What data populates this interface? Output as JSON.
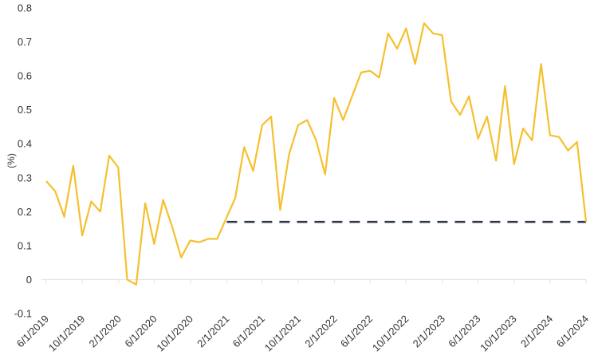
{
  "chart_data": {
    "type": "line",
    "ylabel": "(%)",
    "ylim": [
      -0.1,
      0.8
    ],
    "yticks": [
      "-0.1",
      "0",
      "0.1",
      "0.2",
      "0.3",
      "0.4",
      "0.5",
      "0.6",
      "0.7",
      "0.8"
    ],
    "xtick_labels": [
      "6/1/2019",
      "10/1/2019",
      "2/1/2020",
      "6/1/2020",
      "10/1/2020",
      "2/1/2021",
      "6/1/2021",
      "10/1/2021",
      "2/1/2022",
      "6/1/2022",
      "10/1/2022",
      "2/1/2023",
      "6/1/2023",
      "10/1/2023",
      "2/1/2024",
      "6/1/2024"
    ],
    "x_start": "6/1/2019",
    "x_end": "6/1/2024",
    "grid": false,
    "colors": {
      "series": "#F5C02E",
      "reference": "#2D3748"
    },
    "series": [
      {
        "values": [
          0.29,
          0.26,
          0.185,
          0.335,
          0.13,
          0.23,
          0.2,
          0.365,
          0.33,
          0.0,
          -0.015,
          0.225,
          0.105,
          0.235,
          0.155,
          0.065,
          0.115,
          0.11,
          0.12,
          0.12,
          0.18,
          0.24,
          0.39,
          0.32,
          0.455,
          0.48,
          0.205,
          0.37,
          0.455,
          0.47,
          0.41,
          0.31,
          0.535,
          0.47,
          0.54,
          0.61,
          0.615,
          0.595,
          0.725,
          0.68,
          0.74,
          0.635,
          0.755,
          0.725,
          0.72,
          0.525,
          0.485,
          0.54,
          0.415,
          0.48,
          0.35,
          0.57,
          0.34,
          0.445,
          0.41,
          0.635,
          0.425,
          0.42,
          0.38,
          0.405,
          0.17
        ]
      }
    ],
    "reference_line": {
      "style": "dashed",
      "value": 0.17,
      "from": "2/1/2021",
      "to": "6/1/2024"
    }
  }
}
